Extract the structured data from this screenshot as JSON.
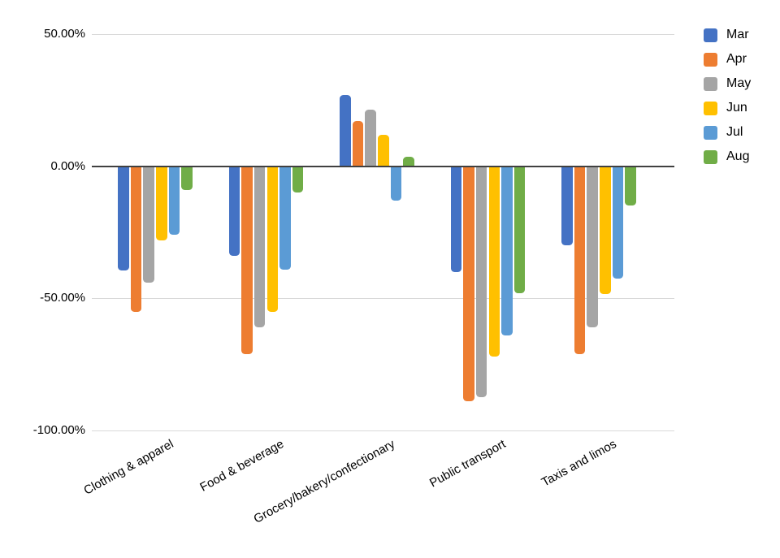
{
  "chart_data": {
    "type": "bar",
    "title": "",
    "xlabel": "",
    "ylabel": "",
    "grid": true,
    "legend_position": "right",
    "ylim": [
      -100,
      50
    ],
    "yticks": [
      {
        "value": 50,
        "label": "50.00%"
      },
      {
        "value": 0,
        "label": "0.00%"
      },
      {
        "value": -50,
        "label": "-50.00%"
      },
      {
        "value": -100,
        "label": "-100.00%"
      }
    ],
    "categories": [
      "Clothing & apparel",
      "Food & beverage",
      "Grocery/bakery/confectionary",
      "Public transport",
      "Taxis and limos"
    ],
    "series": [
      {
        "name": "Mar",
        "color": "#4472C4",
        "values": [
          -39.5,
          -34,
          27,
          -40,
          -30
        ]
      },
      {
        "name": "Apr",
        "color": "#ED7D31",
        "values": [
          -55,
          -71,
          17,
          -89,
          -71
        ]
      },
      {
        "name": "May",
        "color": "#A5A5A5",
        "values": [
          -44,
          -61,
          21.5,
          -87.5,
          -61
        ]
      },
      {
        "name": "Jun",
        "color": "#FFC000",
        "values": [
          -28,
          -55,
          12,
          -72,
          -48.5
        ]
      },
      {
        "name": "Jul",
        "color": "#5B9BD5",
        "values": [
          -26,
          -39,
          -13,
          -64,
          -42.5
        ]
      },
      {
        "name": "Aug",
        "color": "#70AD47",
        "values": [
          -9,
          -10,
          3.5,
          -48,
          -15
        ]
      }
    ]
  }
}
